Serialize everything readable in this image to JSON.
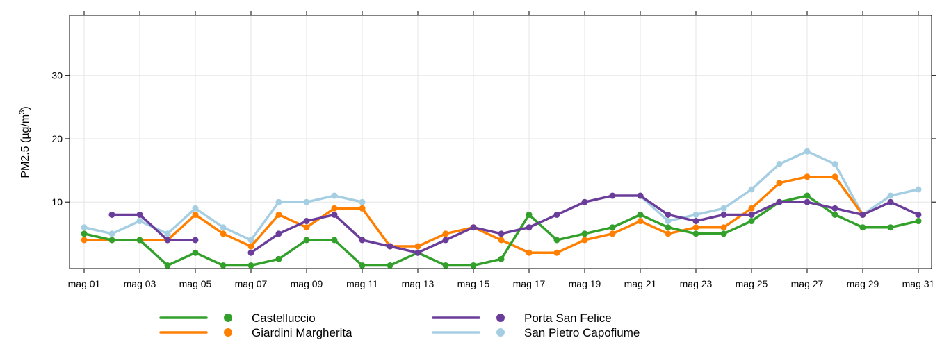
{
  "chart_data": {
    "type": "line",
    "xlabel": "",
    "ylabel": "PM2.5 (µg/m",
    "ylabel_superscript": "3",
    "ylabel_close": ")",
    "ylim": [
      -0.5,
      39.5
    ],
    "yticks": [
      10,
      20,
      30
    ],
    "x": [
      "mag 01",
      "mag 02",
      "mag 03",
      "mag 04",
      "mag 05",
      "mag 06",
      "mag 07",
      "mag 08",
      "mag 09",
      "mag 10",
      "mag 11",
      "mag 12",
      "mag 13",
      "mag 14",
      "mag 15",
      "mag 16",
      "mag 17",
      "mag 18",
      "mag 19",
      "mag 20",
      "mag 21",
      "mag 22",
      "mag 23",
      "mag 24",
      "mag 25",
      "mag 26",
      "mag 27",
      "mag 28",
      "mag 29",
      "mag 30",
      "mag 31"
    ],
    "xtick_labels": [
      "mag 01",
      "mag 03",
      "mag 05",
      "mag 07",
      "mag 09",
      "mag 11",
      "mag 13",
      "mag 15",
      "mag 17",
      "mag 19",
      "mag 21",
      "mag 23",
      "mag 25",
      "mag 27",
      "mag 29",
      "mag 31"
    ],
    "grid": true,
    "legend_position": "bottom",
    "series": [
      {
        "name": "Castelluccio",
        "color": "#33a02c",
        "values": [
          5,
          4,
          4,
          0,
          2,
          0,
          0,
          1,
          4,
          4,
          0,
          0,
          2,
          0,
          0,
          1,
          8,
          4,
          5,
          6,
          8,
          6,
          5,
          5,
          7,
          10,
          11,
          8,
          6,
          6,
          7
        ]
      },
      {
        "name": "Giardini Margherita",
        "color": "#ff7f00",
        "values": [
          4,
          4,
          4,
          4,
          8,
          5,
          3,
          8,
          6,
          9,
          9,
          3,
          3,
          5,
          6,
          4,
          2,
          2,
          4,
          5,
          7,
          5,
          6,
          6,
          9,
          13,
          14,
          14,
          8,
          null,
          null
        ]
      },
      {
        "name": "Porta San Felice",
        "color": "#6a3d9a",
        "values": [
          null,
          8,
          8,
          4,
          4,
          null,
          2,
          5,
          7,
          8,
          4,
          3,
          2,
          4,
          6,
          5,
          6,
          8,
          10,
          11,
          11,
          8,
          7,
          8,
          8,
          10,
          10,
          9,
          8,
          10,
          8
        ]
      },
      {
        "name": "San Pietro Capofiume",
        "color": "#a6cee3",
        "values": [
          6,
          5,
          7,
          5,
          9,
          6,
          4,
          10,
          10,
          11,
          10,
          null,
          null,
          null,
          null,
          null,
          null,
          null,
          null,
          null,
          11,
          7,
          8,
          9,
          12,
          16,
          18,
          16,
          8,
          11,
          12
        ]
      }
    ],
    "draw_order": [
      3,
      1,
      0,
      2
    ]
  }
}
